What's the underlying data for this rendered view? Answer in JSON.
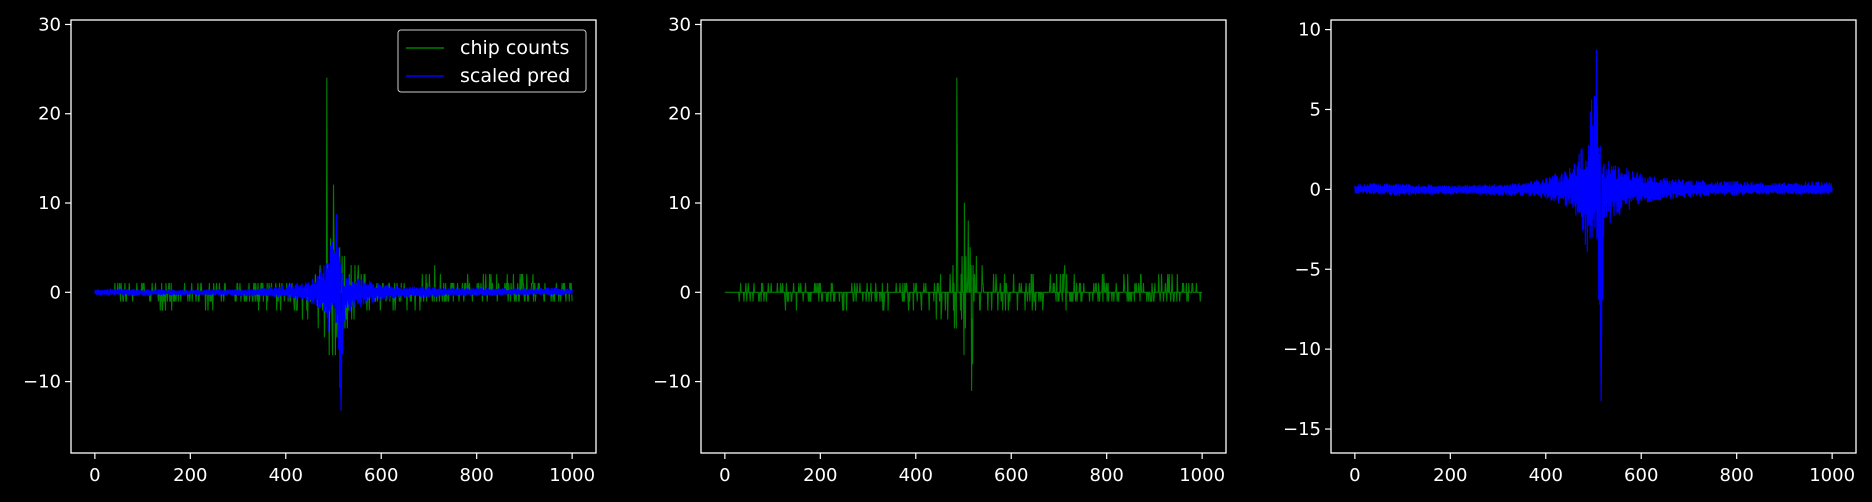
{
  "chart_data": [
    {
      "type": "line",
      "title": "",
      "xlabel": "",
      "ylabel": "",
      "xlim": [
        -50,
        1050
      ],
      "ylim": [
        -18,
        30.5
      ],
      "xticks": [
        0,
        200,
        400,
        600,
        800,
        1000
      ],
      "xtick_labels": [
        "0",
        "200",
        "400",
        "600",
        "800",
        "1000"
      ],
      "yticks": [
        -10,
        0,
        10,
        20,
        30
      ],
      "ytick_labels": [
        "−10",
        "0",
        "10",
        "20",
        "30"
      ],
      "grid": false,
      "legend": "upper-right",
      "series": [
        {
          "name": "chip counts",
          "color": "#008000",
          "x": [
            0,
            50,
            100,
            150,
            200,
            250,
            300,
            350,
            400,
            420,
            440,
            460,
            470,
            480,
            485,
            490,
            495,
            500,
            505,
            510,
            515,
            520,
            530,
            540,
            560,
            580,
            600,
            620,
            650,
            680,
            700,
            715,
            730,
            760,
            800,
            850,
            900,
            950,
            1000
          ],
          "upper": [
            0,
            1,
            1,
            1,
            1,
            1,
            1,
            1,
            1,
            1,
            2,
            3,
            4,
            5,
            28,
            8,
            6,
            13,
            7,
            8,
            5,
            4,
            4,
            3,
            3,
            2,
            2,
            2,
            2,
            2,
            2,
            4,
            2,
            1,
            2,
            2,
            2,
            2,
            1
          ],
          "lower": [
            0,
            -1,
            -1,
            -2,
            -1,
            -2,
            -1,
            -2,
            -2,
            -2,
            -3,
            -3,
            -4,
            -5,
            -7,
            -8,
            -6,
            -8,
            -7,
            -5,
            -16,
            -6,
            -4,
            -3,
            -3,
            -2,
            -2,
            -2,
            -2,
            -2,
            -1,
            -2,
            -1,
            -1,
            -1,
            -1,
            -1,
            -1,
            -1
          ]
        },
        {
          "name": "scaled pred",
          "color": "#0000ff",
          "x": [
            0,
            50,
            100,
            150,
            200,
            250,
            300,
            350,
            380,
            400,
            420,
            440,
            460,
            470,
            480,
            490,
            500,
            505,
            510,
            515,
            520,
            525,
            530,
            540,
            550,
            560,
            580,
            600,
            620,
            650,
            700,
            750,
            800,
            850,
            900,
            950,
            1000
          ],
          "upper": [
            0.3,
            0.4,
            0.3,
            0.3,
            0.2,
            0.3,
            0.3,
            0.4,
            0.6,
            0.8,
            1.0,
            1.2,
            1.6,
            2.5,
            3.0,
            4.0,
            7.0,
            9.4,
            6.0,
            3.0,
            1.8,
            1.5,
            2.0,
            1.5,
            1.6,
            1.4,
            1.2,
            1.0,
            0.8,
            0.7,
            0.6,
            0.5,
            0.5,
            0.4,
            0.4,
            0.5,
            0.4
          ],
          "lower": [
            -0.3,
            -0.3,
            -0.4,
            -0.3,
            -0.3,
            -0.3,
            -0.4,
            -0.4,
            -0.5,
            -0.6,
            -0.8,
            -1.0,
            -1.5,
            -2.0,
            -3.0,
            -4.7,
            -2.5,
            -3.5,
            -5.0,
            -15.3,
            -5.0,
            -3.0,
            -2.2,
            -2.0,
            -1.8,
            -1.5,
            -1.2,
            -0.9,
            -0.8,
            -0.6,
            -0.5,
            -0.4,
            -0.4,
            -0.3,
            -0.3,
            -0.3,
            -0.3
          ]
        }
      ]
    },
    {
      "type": "line",
      "title": "",
      "xlabel": "",
      "ylabel": "",
      "xlim": [
        -50,
        1050
      ],
      "ylim": [
        -18,
        30.5
      ],
      "xticks": [
        0,
        200,
        400,
        600,
        800,
        1000
      ],
      "xtick_labels": [
        "0",
        "200",
        "400",
        "600",
        "800",
        "1000"
      ],
      "yticks": [
        -10,
        0,
        10,
        20,
        30
      ],
      "ytick_labels": [
        "−10",
        "0",
        "10",
        "20",
        "30"
      ],
      "grid": false,
      "legend": "none",
      "series": [
        {
          "color": "#008000",
          "x": [
            0,
            50,
            100,
            150,
            200,
            250,
            300,
            350,
            400,
            420,
            440,
            460,
            470,
            480,
            485,
            490,
            495,
            500,
            505,
            510,
            515,
            520,
            530,
            540,
            560,
            580,
            600,
            620,
            650,
            680,
            700,
            715,
            730,
            760,
            800,
            850,
            900,
            950,
            1000
          ],
          "upper": [
            0,
            1,
            1,
            1,
            1,
            1,
            1,
            1,
            1,
            1,
            2,
            3,
            4,
            5,
            28,
            8,
            6,
            13,
            7,
            8,
            5,
            4,
            4,
            3,
            3,
            2,
            2,
            2,
            2,
            2,
            2,
            4,
            2,
            1,
            2,
            2,
            2,
            2,
            1
          ],
          "lower": [
            0,
            -1,
            -1,
            -2,
            -1,
            -2,
            -1,
            -2,
            -2,
            -2,
            -3,
            -3,
            -4,
            -5,
            -7,
            -8,
            -6,
            -8,
            -7,
            -5,
            -16,
            -6,
            -4,
            -3,
            -3,
            -2,
            -2,
            -2,
            -2,
            -2,
            -1,
            -2,
            -1,
            -1,
            -1,
            -1,
            -1,
            -1,
            -1
          ]
        }
      ]
    },
    {
      "type": "line",
      "title": "",
      "xlabel": "",
      "ylabel": "",
      "xlim": [
        -50,
        1050
      ],
      "ylim": [
        -16.5,
        10.6
      ],
      "xticks": [
        0,
        200,
        400,
        600,
        800,
        1000
      ],
      "xtick_labels": [
        "0",
        "200",
        "400",
        "600",
        "800",
        "1000"
      ],
      "yticks": [
        -15,
        -10,
        -5,
        0,
        5,
        10
      ],
      "ytick_labels": [
        "−15",
        "−10",
        "−5",
        "0",
        "5",
        "10"
      ],
      "grid": false,
      "legend": "none",
      "series": [
        {
          "color": "#0000ff",
          "x": [
            0,
            50,
            100,
            150,
            200,
            250,
            300,
            350,
            380,
            400,
            420,
            440,
            460,
            470,
            480,
            490,
            500,
            505,
            510,
            515,
            520,
            525,
            530,
            540,
            550,
            560,
            580,
            600,
            620,
            650,
            700,
            750,
            800,
            850,
            900,
            950,
            1000
          ],
          "upper": [
            0.3,
            0.4,
            0.3,
            0.3,
            0.2,
            0.3,
            0.3,
            0.4,
            0.6,
            0.8,
            1.0,
            1.2,
            1.6,
            2.5,
            3.0,
            4.0,
            7.0,
            9.4,
            6.0,
            3.0,
            1.8,
            1.5,
            2.0,
            1.5,
            1.6,
            1.4,
            1.2,
            1.0,
            0.8,
            0.7,
            0.6,
            0.5,
            0.5,
            0.4,
            0.4,
            0.5,
            0.4
          ],
          "lower": [
            -0.3,
            -0.3,
            -0.4,
            -0.3,
            -0.3,
            -0.3,
            -0.4,
            -0.4,
            -0.5,
            -0.6,
            -0.8,
            -1.0,
            -1.5,
            -2.0,
            -3.0,
            -4.7,
            -2.5,
            -3.5,
            -5.0,
            -15.3,
            -5.0,
            -3.0,
            -2.2,
            -2.0,
            -1.8,
            -1.5,
            -1.2,
            -0.9,
            -0.8,
            -0.6,
            -0.5,
            -0.4,
            -0.4,
            -0.3,
            -0.3,
            -0.3,
            -0.3
          ]
        }
      ]
    }
  ]
}
